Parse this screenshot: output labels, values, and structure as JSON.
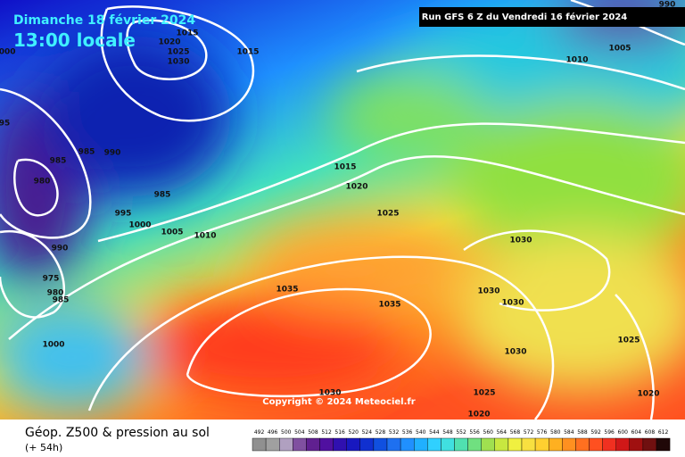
{
  "header": {
    "date": "Dimanche 18 février 2024",
    "time": "13:00 locale",
    "run": "Run GFS 6 Z du Vendredi 16 février 2024"
  },
  "isobar_labels": [
    "1015",
    "1020",
    "1025",
    "1030",
    "1015",
    "990",
    "1005",
    "1010",
    "1000",
    "95",
    "985",
    "985",
    "990",
    "980",
    "985",
    "995",
    "1000",
    "1005",
    "1010",
    "1015",
    "1020",
    "1025",
    "990",
    "975",
    "980",
    "985",
    "1000",
    "1035",
    "1035",
    "1030",
    "1030",
    "1030",
    "1030",
    "1025",
    "1020",
    "1025",
    "1020",
    "1030"
  ],
  "copyright": "Copyright © 2024 Meteociel.fr",
  "footer": {
    "title": "Géop. Z500 & pression au sol",
    "lead": "(+ 54h)"
  },
  "scale_labels": [
    "492",
    "496",
    "500",
    "504",
    "508",
    "512",
    "516",
    "520",
    "524",
    "528",
    "532",
    "536",
    "540",
    "544",
    "548",
    "552",
    "556",
    "560",
    "564",
    "568",
    "572",
    "576",
    "580",
    "584",
    "588",
    "592",
    "596",
    "600",
    "604",
    "608",
    "612"
  ]
}
